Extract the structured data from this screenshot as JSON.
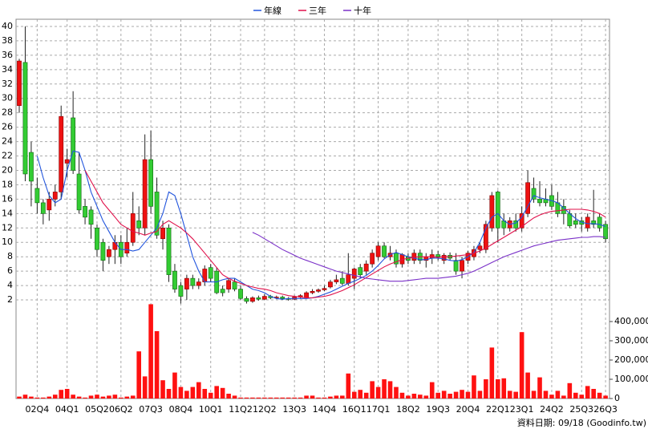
{
  "chart_data": [
    {
      "type": "candlestick",
      "up_color": "#ee1111",
      "down_color": "#33cc33",
      "open": [
        29,
        35,
        22.5,
        17.5,
        15.5,
        14.5,
        16,
        17,
        21,
        27.3,
        19.5,
        15,
        14.5,
        12,
        10,
        8,
        9,
        10,
        8.5,
        10,
        13,
        12,
        21.5,
        17,
        10.5,
        12,
        6,
        4,
        3.5,
        5,
        4,
        4.5,
        6.5,
        6,
        3.5,
        3.5,
        4.5,
        3.5,
        2.2,
        1.8,
        2.3,
        2.1,
        2.5,
        2.3,
        2.4,
        2.2,
        2.1,
        2.4,
        2.3,
        3,
        3.2,
        3.4,
        3.8,
        4.5,
        5,
        4.3,
        5,
        6.5,
        6,
        7,
        8,
        9.5,
        8,
        8.5,
        7,
        8,
        7.5,
        8.5,
        7.5,
        7.8,
        8.3,
        7.5,
        8.2,
        7.5,
        6,
        7.5,
        8,
        9,
        9,
        12,
        17,
        13,
        12,
        13,
        12,
        14,
        17.5,
        16,
        16,
        16.5,
        15.5,
        15,
        14,
        13,
        13,
        12,
        13,
        13.5,
        12.5
      ],
      "high": [
        35.5,
        40,
        24,
        19,
        16,
        17,
        18,
        29,
        23,
        31,
        22.5,
        16,
        15,
        12.5,
        10.5,
        9.5,
        11,
        11,
        12,
        17,
        15,
        25,
        25.5,
        19,
        13,
        12.5,
        7,
        4.5,
        5.5,
        5.5,
        5,
        6.8,
        7,
        6.5,
        4,
        5,
        5,
        4,
        2.5,
        2.5,
        2.6,
        2.8,
        2.7,
        2.6,
        2.6,
        2.4,
        2.6,
        2.8,
        3.2,
        3.5,
        3.6,
        4,
        4.8,
        5.5,
        6,
        8.5,
        6.5,
        7,
        7.5,
        9,
        10,
        10,
        9.5,
        9,
        8.5,
        8.5,
        9,
        9,
        8.5,
        9,
        8.8,
        8.5,
        8.6,
        8.5,
        8,
        8.8,
        9.5,
        10,
        13,
        17,
        17.2,
        14,
        13.5,
        14,
        15,
        20,
        19,
        18.5,
        17.5,
        18,
        17,
        16,
        14.5,
        14,
        13.5,
        14,
        17.3,
        14,
        13
      ],
      "low": [
        28,
        18.5,
        15,
        14,
        12.5,
        13,
        15,
        16,
        19,
        19.5,
        14,
        12.5,
        10.5,
        8,
        6,
        7,
        7,
        7,
        8,
        9.5,
        11,
        11,
        14,
        10.5,
        9,
        4.5,
        3,
        1.5,
        2,
        3.5,
        3.5,
        4,
        4.5,
        2.8,
        2.5,
        3,
        3.2,
        2,
        1.5,
        1.6,
        1.9,
        2,
        2.1,
        2.1,
        2,
        1.9,
        2,
        2.2,
        2.2,
        2.8,
        3,
        3.2,
        3.6,
        4.2,
        4,
        4,
        3.5,
        5,
        5.5,
        6.5,
        7.5,
        7.8,
        7.5,
        6.5,
        6.5,
        7,
        7,
        7,
        6.5,
        7,
        7.5,
        7,
        7.5,
        5.5,
        5,
        7,
        7.5,
        8.5,
        8.5,
        11.5,
        10,
        11,
        11.5,
        11.5,
        11.5,
        13.5,
        15.5,
        15,
        15,
        14.5,
        13.5,
        12.5,
        12,
        12,
        11.5,
        11.5,
        12,
        11.5,
        10
      ],
      "close": [
        35.2,
        19.5,
        18.5,
        15.5,
        14,
        16,
        17,
        27.5,
        21.5,
        20,
        14.5,
        13.5,
        12.5,
        9,
        7.5,
        9,
        10,
        8,
        10,
        14,
        12,
        21.5,
        15,
        11,
        12,
        5.5,
        3.5,
        2.5,
        5,
        4,
        4.5,
        6.3,
        5,
        3,
        3,
        4.7,
        3.5,
        2.2,
        1.8,
        2.3,
        2.1,
        2.5,
        2.3,
        2.4,
        2.2,
        2.1,
        2.4,
        2.6,
        3,
        3.2,
        3.4,
        3.6,
        4.5,
        4.8,
        4.3,
        5.5,
        6.3,
        5.5,
        7,
        8.5,
        9.5,
        8,
        8.5,
        7,
        8.3,
        7.5,
        8.5,
        7.5,
        8,
        8.3,
        8,
        8.2,
        7.8,
        6,
        7.5,
        8.5,
        9,
        9.5,
        12.5,
        16.5,
        12,
        12,
        13,
        12,
        14,
        18.3,
        16,
        15.5,
        15.5,
        15,
        14,
        14,
        12.3,
        12.5,
        12.5,
        13.5,
        12.5,
        12,
        10.5
      ],
      "series": [
        {
          "name": "年線",
          "color": "#2255dd",
          "values": [
            null,
            null,
            null,
            22,
            19,
            16.5,
            15.5,
            16,
            20,
            22.7,
            22.5,
            20,
            17,
            15,
            13,
            11.5,
            10,
            9,
            9,
            8.8,
            9,
            10,
            11,
            12,
            14,
            17,
            16.5,
            14,
            11,
            8,
            6,
            4.5,
            4.5,
            4.5,
            4.8,
            5,
            5,
            4.5,
            4,
            3.5,
            3.3,
            3,
            2.5,
            2.2,
            2.1,
            2.2,
            2.2,
            2.2,
            2.2,
            2.3,
            2.5,
            2.8,
            3.1,
            3.5,
            3.9,
            4.3,
            4.6,
            5,
            5.4,
            6,
            6.8,
            7.7,
            8.3,
            8.6,
            8.3,
            8,
            7.8,
            7.6,
            7.6,
            7.8,
            7.8,
            7.7,
            7.5,
            7.4,
            7.6,
            8,
            8.6,
            10,
            12,
            13.5,
            14,
            13,
            12.5,
            12.7,
            13.5,
            15,
            16.5,
            16.2,
            16,
            15.8,
            15.5,
            14.8,
            14,
            13.3,
            12.8,
            12.6,
            12.6,
            12.5,
            12.2
          ]
        },
        {
          "name": "三年",
          "color": "#e0104a",
          "values": [
            null,
            null,
            null,
            null,
            null,
            null,
            null,
            null,
            null,
            null,
            null,
            20,
            18.5,
            17,
            15.5,
            14.5,
            13.5,
            12.5,
            12,
            11.5,
            11.3,
            11,
            11.3,
            11.5,
            12.5,
            13,
            12.5,
            12,
            11.3,
            10.5,
            9.5,
            8.5,
            7.5,
            6.5,
            5.5,
            5,
            4.6,
            4.3,
            4,
            3.8,
            3.6,
            3.5,
            3.3,
            3,
            2.8,
            2.6,
            2.5,
            2.4,
            2.3,
            2.3,
            2.4,
            2.5,
            2.7,
            3,
            3.3,
            3.7,
            4.1,
            4.6,
            5.1,
            5.6,
            6.1,
            6.6,
            7,
            7.3,
            7.6,
            7.8,
            7.9,
            8,
            8,
            8,
            7.9,
            8,
            8,
            8.1,
            8.2,
            8.3,
            8.5,
            8.8,
            9.2,
            9.7,
            10.2,
            10.7,
            11.2,
            11.7,
            12.2,
            12.8,
            13.4,
            13.8,
            14.1,
            14.3,
            14.4,
            14.5,
            14.6,
            14.6,
            14.6,
            14.5,
            14.3,
            14,
            13.5
          ]
        },
        {
          "name": "十年",
          "color": "#7a30c8",
          "values": [
            null,
            null,
            null,
            null,
            null,
            null,
            null,
            null,
            null,
            null,
            null,
            null,
            null,
            null,
            null,
            null,
            null,
            null,
            null,
            null,
            null,
            null,
            null,
            null,
            null,
            null,
            null,
            null,
            null,
            null,
            null,
            null,
            null,
            null,
            null,
            null,
            null,
            null,
            null,
            11.4,
            11,
            10.5,
            10,
            9.5,
            9,
            8.6,
            8.2,
            7.8,
            7.5,
            7.2,
            6.9,
            6.6,
            6.3,
            6,
            5.8,
            5.6,
            5.4,
            5.2,
            5,
            4.9,
            4.8,
            4.7,
            4.6,
            4.6,
            4.6,
            4.7,
            4.8,
            4.9,
            5,
            5,
            5,
            5.1,
            5.2,
            5.3,
            5.5,
            5.7,
            6,
            6.4,
            6.8,
            7.2,
            7.6,
            8,
            8.3,
            8.6,
            8.9,
            9.2,
            9.5,
            9.7,
            9.9,
            10.1,
            10.3,
            10.4,
            10.5,
            10.6,
            10.7,
            10.7,
            10.8,
            10.8,
            10.7
          ]
        }
      ],
      "ylim": [
        0,
        41
      ],
      "yticks": [
        2,
        4,
        6,
        8,
        10,
        12,
        14,
        16,
        18,
        20,
        22,
        24,
        26,
        28,
        30,
        32,
        34,
        36,
        38,
        40
      ],
      "grid": true,
      "legend": "top"
    },
    {
      "type": "bar",
      "color": "#ff1111",
      "categories": [
        null,
        null,
        null,
        "02Q4",
        null,
        null,
        null,
        null,
        "04Q1",
        null,
        null,
        null,
        null,
        "05Q2",
        null,
        null,
        null,
        "06Q2",
        null,
        null,
        null,
        null,
        "07Q3",
        null,
        null,
        null,
        null,
        "08Q4",
        null,
        null,
        null,
        null,
        "10Q1",
        null,
        null,
        null,
        null,
        "11Q2",
        null,
        null,
        null,
        "12Q2",
        null,
        null,
        null,
        null,
        "13Q3",
        null,
        null,
        null,
        null,
        "14Q4",
        null,
        null,
        null,
        null,
        "16Q1",
        null,
        null,
        null,
        "17Q1",
        null,
        null,
        null,
        null,
        "18Q2",
        null,
        null,
        null,
        null,
        "19Q3",
        null,
        null,
        null,
        null,
        "20Q4",
        null,
        null,
        null,
        null,
        "22Q1",
        null,
        null,
        null,
        "23Q1",
        null,
        null,
        null,
        null,
        "24Q2",
        null,
        null,
        null,
        null,
        "25Q3",
        null,
        null,
        null,
        "26Q3"
      ],
      "values": [
        10000,
        20000,
        10000,
        5000,
        5000,
        10000,
        20000,
        45000,
        50000,
        20000,
        10000,
        5000,
        15000,
        20000,
        10000,
        15000,
        20000,
        5000,
        10000,
        15000,
        245000,
        115000,
        490000,
        350000,
        95000,
        50000,
        135000,
        60000,
        40000,
        60000,
        85000,
        50000,
        30000,
        65000,
        55000,
        25000,
        15000,
        5000,
        5000,
        5000,
        5000,
        5000,
        5000,
        5000,
        5000,
        5000,
        5000,
        5000,
        15000,
        15000,
        5000,
        5000,
        10000,
        15000,
        15000,
        130000,
        35000,
        45000,
        30000,
        90000,
        60000,
        100000,
        90000,
        60000,
        30000,
        15000,
        25000,
        20000,
        15000,
        85000,
        30000,
        40000,
        25000,
        35000,
        45000,
        35000,
        120000,
        40000,
        100000,
        265000,
        100000,
        105000,
        40000,
        35000,
        345000,
        135000,
        40000,
        110000,
        40000,
        20000,
        40000,
        15000,
        80000,
        30000,
        20000,
        65000,
        50000,
        30000,
        15000
      ],
      "ylim": [
        0,
        500000
      ],
      "yticks": [
        0,
        {
          "value": 100000,
          "label": "100,000"
        },
        {
          "value": 200000,
          "label": "200,000"
        },
        {
          "value": 300000,
          "label": "300,000"
        },
        {
          "value": 400000,
          "label": "400,000"
        }
      ],
      "source": "資料日期: 09/18 (Goodinfo.tw)"
    }
  ]
}
